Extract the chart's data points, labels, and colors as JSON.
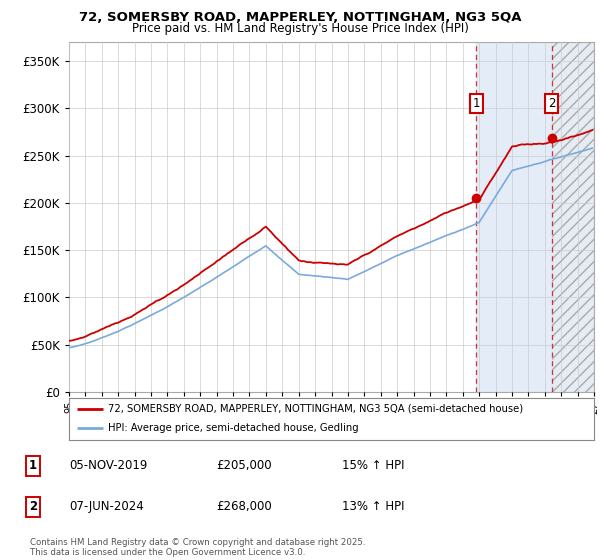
{
  "title_line1": "72, SOMERSBY ROAD, MAPPERLEY, NOTTINGHAM, NG3 5QA",
  "title_line2": "Price paid vs. HM Land Registry's House Price Index (HPI)",
  "ylim": [
    0,
    370000
  ],
  "yticks": [
    0,
    50000,
    100000,
    150000,
    200000,
    250000,
    300000,
    350000
  ],
  "ytick_labels": [
    "£0",
    "£50K",
    "£100K",
    "£150K",
    "£200K",
    "£250K",
    "£300K",
    "£350K"
  ],
  "x_start_year": 1995,
  "x_end_year": 2027,
  "house_color": "#cc0000",
  "hpi_color": "#7aaadd",
  "transaction1_year": 2019.85,
  "transaction1_price": 205000,
  "transaction2_year": 2024.44,
  "transaction2_price": 268000,
  "legend_house": "72, SOMERSBY ROAD, MAPPERLEY, NOTTINGHAM, NG3 5QA (semi-detached house)",
  "legend_hpi": "HPI: Average price, semi-detached house, Gedling",
  "transaction1_date": "05-NOV-2019",
  "transaction2_date": "07-JUN-2024",
  "transaction1_pct": "15% ↑ HPI",
  "transaction2_pct": "13% ↑ HPI",
  "footnote": "Contains HM Land Registry data © Crown copyright and database right 2025.\nThis data is licensed under the Open Government Licence v3.0.",
  "background_color": "#ffffff",
  "grid_color": "#cccccc",
  "shade_blue": "#dce8f5",
  "shade_hatch": "#e8e8e8"
}
